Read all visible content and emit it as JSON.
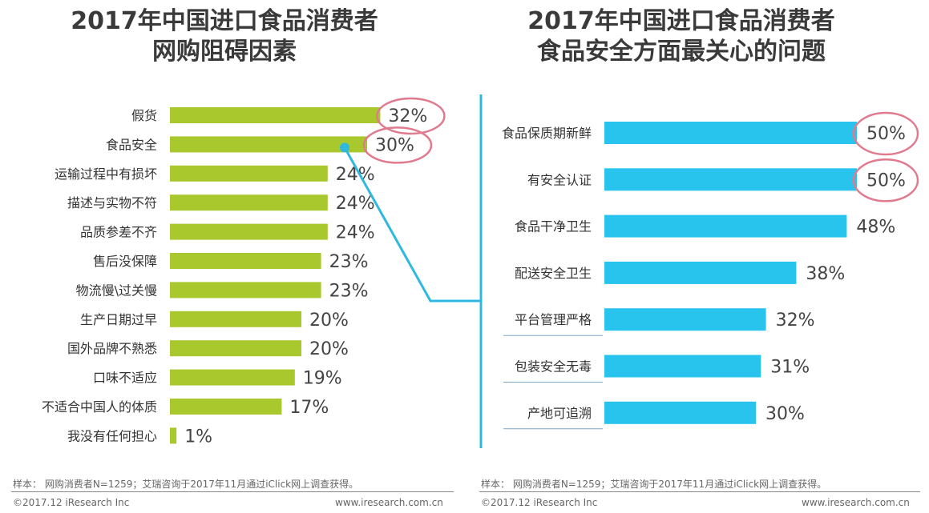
{
  "left_chart": {
    "title_line1": "2017年中国进口食品消费者",
    "title_line2": "网购阻碍因素"
  },
  "right_chart": {
    "title_line1": "2017年中国进口食品消费者",
    "title_line2": "食品安全方面最关心的问题"
  },
  "colors": {
    "left_bar": "#a9c82e",
    "right_bar": "#29c4ee",
    "circle": "#e07a8e",
    "connector": "#2fb8e0"
  },
  "chart_data": [
    {
      "type": "bar",
      "orientation": "horizontal",
      "title": "2017年中国进口食品消费者网购阻碍因素",
      "categories": [
        "假货",
        "食品安全",
        "运输过程中有损坏",
        "描述与实物不符",
        "品质参差不齐",
        "售后没保障",
        "物流慢\\过关慢",
        "生产日期过早",
        "国外品牌不熟悉",
        "口味不适应",
        "不适合中国人的体质",
        "我没有任何担心"
      ],
      "values": [
        32,
        30,
        24,
        24,
        24,
        23,
        23,
        20,
        20,
        19,
        17,
        1
      ],
      "labels": [
        "32%",
        "30%",
        "24%",
        "24%",
        "24%",
        "23%",
        "23%",
        "20%",
        "20%",
        "19%",
        "17%",
        "1%"
      ],
      "highlighted": [
        "32%",
        "30%"
      ]
    },
    {
      "type": "bar",
      "orientation": "horizontal",
      "title": "2017年中国进口食品消费者食品安全方面最关心的问题",
      "categories": [
        "食品保质期新鲜",
        "有安全认证",
        "食品干净卫生",
        "配送安全卫生",
        "平台管理严格",
        "包装安全无毒",
        "产地可追溯"
      ],
      "values": [
        50,
        50,
        48,
        38,
        32,
        31,
        30
      ],
      "labels": [
        "50%",
        "50%",
        "48%",
        "38%",
        "32%",
        "31%",
        "30%"
      ],
      "highlighted": [
        "50%",
        "50%"
      ]
    }
  ],
  "footer": {
    "left_note": "样本： 网购消费者N=1259；艾瑞咨询于2017年11月通过iClick网上调查获得。",
    "left_copyright": "©2017.12 iResearch Inc",
    "left_url": "www.iresearch.com.cn",
    "right_note": "样本： 网购消费者N=1259；艾瑞咨询于2017年11月通过iClick网上调查获得。",
    "right_copyright": "©2017.12 iResearch Inc",
    "right_url": "www.iresearch.com.cn"
  }
}
